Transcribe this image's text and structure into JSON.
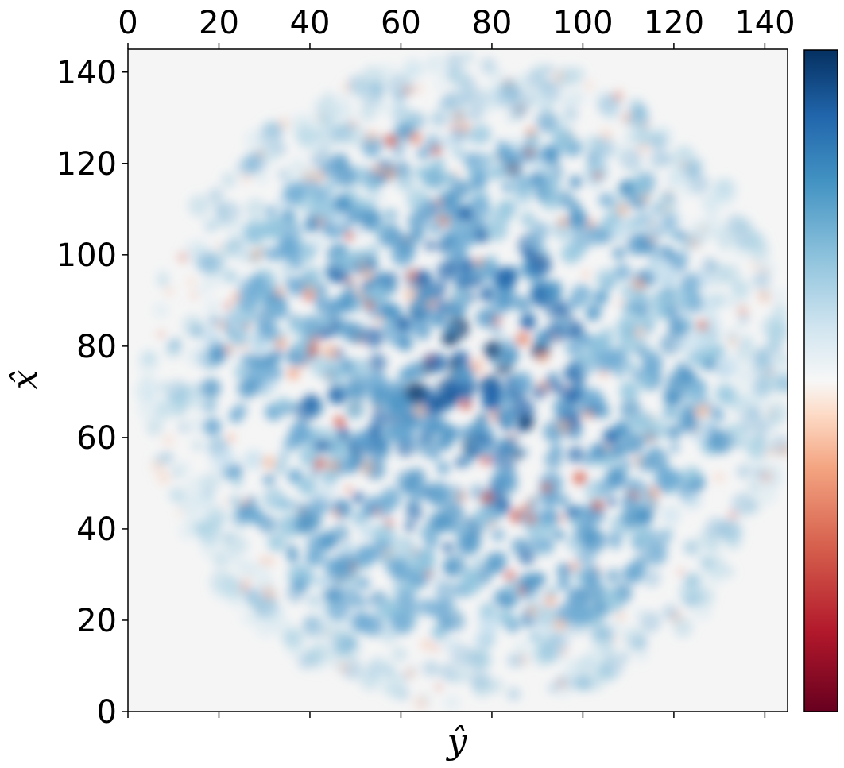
{
  "chart_data": {
    "type": "heatmap",
    "title": "",
    "xlabel": "ŷ",
    "ylabel": "x̂",
    "x_ticks": [
      "0",
      "20",
      "40",
      "60",
      "80",
      "100",
      "120",
      "140"
    ],
    "y_ticks": [
      "0",
      "20",
      "40",
      "60",
      "80",
      "100",
      "120",
      "140"
    ],
    "xlim": [
      0,
      145
    ],
    "ylim": [
      0,
      145
    ],
    "x_tick_position": "top",
    "grid": false,
    "colormap": "RdBu",
    "colorbar": {
      "position": "right",
      "tick_labels": []
    },
    "colors": {
      "background": "#f5f5f5",
      "blue_dark": "#0f3b6e",
      "blue_mid": "#4b93c5",
      "blue_light": "#c9e1ef",
      "neutral": "#f7f7f7",
      "red_light": "#f6c1a5",
      "red_mid": "#d6604d",
      "red_dark": "#67001f"
    },
    "field": {
      "shape": "disc",
      "center": [
        75,
        72
      ],
      "radius": 68
    }
  }
}
